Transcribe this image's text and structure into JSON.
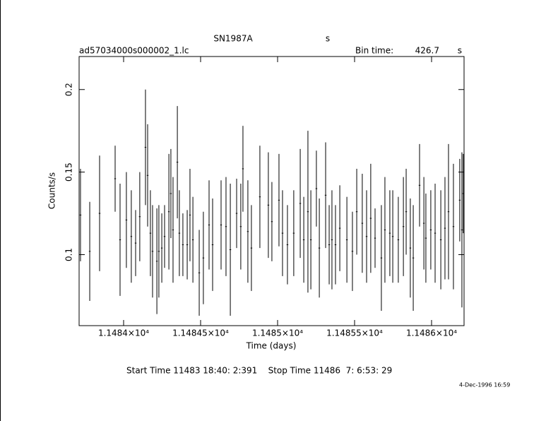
{
  "chart_data": {
    "type": "errorbar",
    "title": "SN1987A",
    "title_unit": "s",
    "file_name": "ad57034000s000002_1.lc",
    "bin_time_label": "Bin time:",
    "bin_time": "426.7",
    "bin_time_unit": "s",
    "x_label": "Time (days)",
    "y_label": "Counts/s",
    "footer": "Start Time 11483 18:40: 2:391    Stop Time 11486  7: 6:53: 29",
    "timestamp": "4-Dec-1996 16:59",
    "color": "#000000",
    "xlim": [
      11483.711,
      11486.211
    ],
    "ylim": [
      0.057,
      0.22
    ],
    "xticks": [
      {
        "value": 11484,
        "label": "1.1484×10⁴"
      },
      {
        "value": 11484.5,
        "label": "1.14845×10⁴"
      },
      {
        "value": 11485,
        "label": "1.1485×10⁴"
      },
      {
        "value": 11485.5,
        "label": "1.14855×10⁴"
      },
      {
        "value": 11486,
        "label": "1.1486×10⁴"
      }
    ],
    "yticks": [
      0.1,
      0.15,
      0.2
    ],
    "x": [
      11483.72,
      11483.78,
      11483.844,
      11483.945,
      11483.977,
      11484.018,
      11484.05,
      11484.078,
      11484.105,
      11484.142,
      11484.156,
      11484.174,
      11484.188,
      11484.216,
      11484.229,
      11484.248,
      11484.266,
      11484.294,
      11484.307,
      11484.321,
      11484.349,
      11484.362,
      11484.385,
      11484.413,
      11484.431,
      11484.45,
      11484.491,
      11484.518,
      11484.555,
      11484.578,
      11484.633,
      11484.665,
      11484.693,
      11484.734,
      11484.761,
      11484.775,
      11484.807,
      11484.83,
      11484.885,
      11484.94,
      11484.963,
      11485.009,
      11485.032,
      11485.064,
      11485.105,
      11485.147,
      11485.17,
      11485.197,
      11485.216,
      11485.252,
      11485.271,
      11485.312,
      11485.335,
      11485.353,
      11485.376,
      11485.404,
      11485.45,
      11485.486,
      11485.514,
      11485.55,
      11485.578,
      11485.605,
      11485.633,
      11485.674,
      11485.697,
      11485.729,
      11485.748,
      11485.784,
      11485.817,
      11485.835,
      11485.862,
      11485.881,
      11485.922,
      11485.95,
      11485.963,
      11485.995,
      11486.023,
      11486.06,
      11486.087,
      11486.11,
      11486.142,
      11486.183,
      11486.197,
      11486.206
    ],
    "values": [
      0.124,
      0.102,
      0.125,
      0.146,
      0.109,
      0.121,
      0.111,
      0.107,
      0.123,
      0.165,
      0.148,
      0.113,
      0.102,
      0.096,
      0.102,
      0.104,
      0.111,
      0.126,
      0.137,
      0.115,
      0.156,
      0.113,
      0.106,
      0.106,
      0.124,
      0.109,
      0.089,
      0.098,
      0.118,
      0.106,
      0.118,
      0.117,
      0.103,
      0.125,
      0.117,
      0.152,
      0.114,
      0.104,
      0.135,
      0.13,
      0.12,
      0.133,
      0.113,
      0.106,
      0.113,
      0.131,
      0.109,
      0.126,
      0.109,
      0.14,
      0.104,
      0.136,
      0.106,
      0.109,
      0.106,
      0.116,
      0.109,
      0.102,
      0.126,
      0.119,
      0.111,
      0.122,
      0.11,
      0.098,
      0.115,
      0.113,
      0.111,
      0.109,
      0.117,
      0.126,
      0.104,
      0.098,
      0.142,
      0.119,
      0.11,
      0.115,
      0.113,
      0.109,
      0.116,
      0.126,
      0.117,
      0.133,
      0.115,
      0.137
    ],
    "errors": [
      0.028,
      0.03,
      0.035,
      0.02,
      0.034,
      0.029,
      0.028,
      0.02,
      0.027,
      0.035,
      0.031,
      0.026,
      0.028,
      0.032,
      0.028,
      0.021,
      0.019,
      0.035,
      0.027,
      0.032,
      0.034,
      0.026,
      0.019,
      0.021,
      0.028,
      0.026,
      0.026,
      0.028,
      0.027,
      0.028,
      0.027,
      0.03,
      0.04,
      0.021,
      0.026,
      0.026,
      0.031,
      0.026,
      0.031,
      0.032,
      0.024,
      0.028,
      0.026,
      0.024,
      0.026,
      0.033,
      0.026,
      0.049,
      0.03,
      0.023,
      0.03,
      0.032,
      0.024,
      0.03,
      0.024,
      0.026,
      0.026,
      0.024,
      0.026,
      0.03,
      0.028,
      0.033,
      0.018,
      0.032,
      0.032,
      0.026,
      0.028,
      0.026,
      0.03,
      0.026,
      0.03,
      0.032,
      0.025,
      0.028,
      0.027,
      0.024,
      0.03,
      0.03,
      0.031,
      0.041,
      0.038,
      0.025,
      0.047,
      0.024
    ]
  }
}
